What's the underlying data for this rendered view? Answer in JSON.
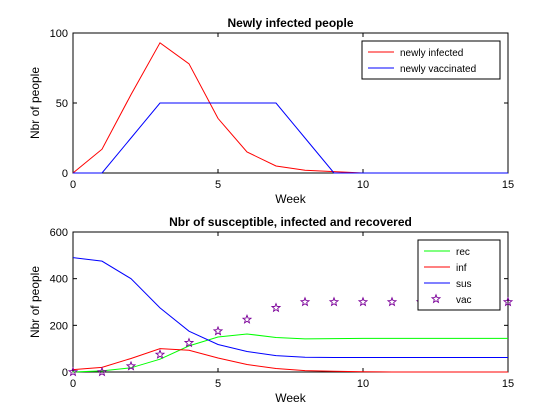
{
  "chart_data": [
    {
      "type": "line",
      "title": "Newly infected people",
      "xlabel": "Week",
      "ylabel": "Nbr of people",
      "xlim": [
        0,
        15
      ],
      "ylim": [
        0,
        100
      ],
      "xticks": [
        0,
        5,
        10,
        15
      ],
      "yticks": [
        0,
        50,
        100
      ],
      "grid": false,
      "legend_position": "top-right",
      "x": [
        0,
        1,
        2,
        3,
        4,
        5,
        6,
        7,
        8,
        9,
        10,
        11,
        12,
        13,
        14,
        15
      ],
      "series": [
        {
          "name": "newly infected",
          "color": "#ff0000",
          "style": "line",
          "values": [
            0,
            17,
            56,
            93,
            78,
            39,
            15,
            5,
            2,
            1,
            0,
            0,
            0,
            0,
            0,
            0
          ]
        },
        {
          "name": "newly vaccinated",
          "color": "#0000ff",
          "style": "line",
          "values": [
            0,
            0,
            25,
            50,
            50,
            50,
            50,
            50,
            25,
            0,
            0,
            0,
            0,
            0,
            0,
            0
          ]
        }
      ]
    },
    {
      "type": "line",
      "title": "Nbr of susceptible, infected and recovered",
      "xlabel": "Week",
      "ylabel": "Nbr of people",
      "xlim": [
        0,
        15
      ],
      "ylim": [
        0,
        600
      ],
      "xticks": [
        0,
        5,
        10,
        15
      ],
      "yticks": [
        0,
        200,
        400,
        600
      ],
      "grid": false,
      "legend_position": "top-right",
      "x": [
        0,
        1,
        2,
        3,
        4,
        5,
        6,
        7,
        8,
        9,
        10,
        11,
        12,
        13,
        14,
        15
      ],
      "series": [
        {
          "name": "rec",
          "color": "#00ff00",
          "style": "line",
          "values": [
            0,
            5,
            18,
            55,
            112,
            150,
            163,
            148,
            142,
            143,
            144,
            144,
            144,
            144,
            144,
            144
          ]
        },
        {
          "name": "inf",
          "color": "#ff0000",
          "style": "line",
          "values": [
            10,
            20,
            58,
            100,
            93,
            60,
            32,
            15,
            6,
            3,
            1,
            0,
            0,
            0,
            0,
            0
          ]
        },
        {
          "name": "sus",
          "color": "#0000ff",
          "style": "line",
          "values": [
            490,
            475,
            400,
            275,
            175,
            118,
            88,
            70,
            63,
            62,
            62,
            62,
            62,
            62,
            62,
            62
          ]
        },
        {
          "name": "vac",
          "color": "#7b0099",
          "style": "marker",
          "values": [
            0,
            0,
            25,
            75,
            125,
            175,
            225,
            275,
            300,
            300,
            300,
            300,
            300,
            300,
            300,
            300
          ]
        }
      ]
    }
  ]
}
